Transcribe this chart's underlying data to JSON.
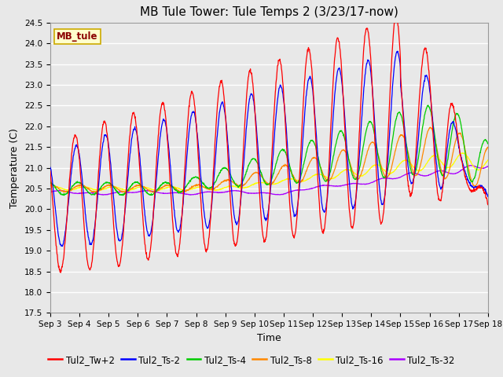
{
  "title": "MB Tule Tower: Tule Temps 2 (3/23/17-now)",
  "xlabel": "Time",
  "ylabel": "Temperature (C)",
  "ylim": [
    17.5,
    24.5
  ],
  "xlim": [
    0,
    15
  ],
  "x_tick_labels": [
    "Sep 3",
    "Sep 4",
    "Sep 5",
    "Sep 6",
    "Sep 7",
    "Sep 8",
    "Sep 9",
    "Sep 10",
    "Sep 11",
    "Sep 12",
    "Sep 13",
    "Sep 14",
    "Sep 15",
    "Sep 16",
    "Sep 17",
    "Sep 18"
  ],
  "legend_label": "MB_tule",
  "series_names": [
    "Tul2_Tw+2",
    "Tul2_Ts-2",
    "Tul2_Ts-4",
    "Tul2_Ts-8",
    "Tul2_Ts-16",
    "Tul2_Ts-32"
  ],
  "series_colors": [
    "#ff0000",
    "#0000ff",
    "#00cc00",
    "#ff8800",
    "#ffff00",
    "#aa00ff"
  ],
  "fig_bg_color": "#e8e8e8",
  "plot_bg_color": "#e8e8e8",
  "title_fontsize": 11,
  "axis_label_fontsize": 9,
  "tick_label_fontsize": 7.5,
  "legend_fontsize": 8.5,
  "grid_color": "#ffffff",
  "n_days": 15,
  "pts_per_day": 96
}
